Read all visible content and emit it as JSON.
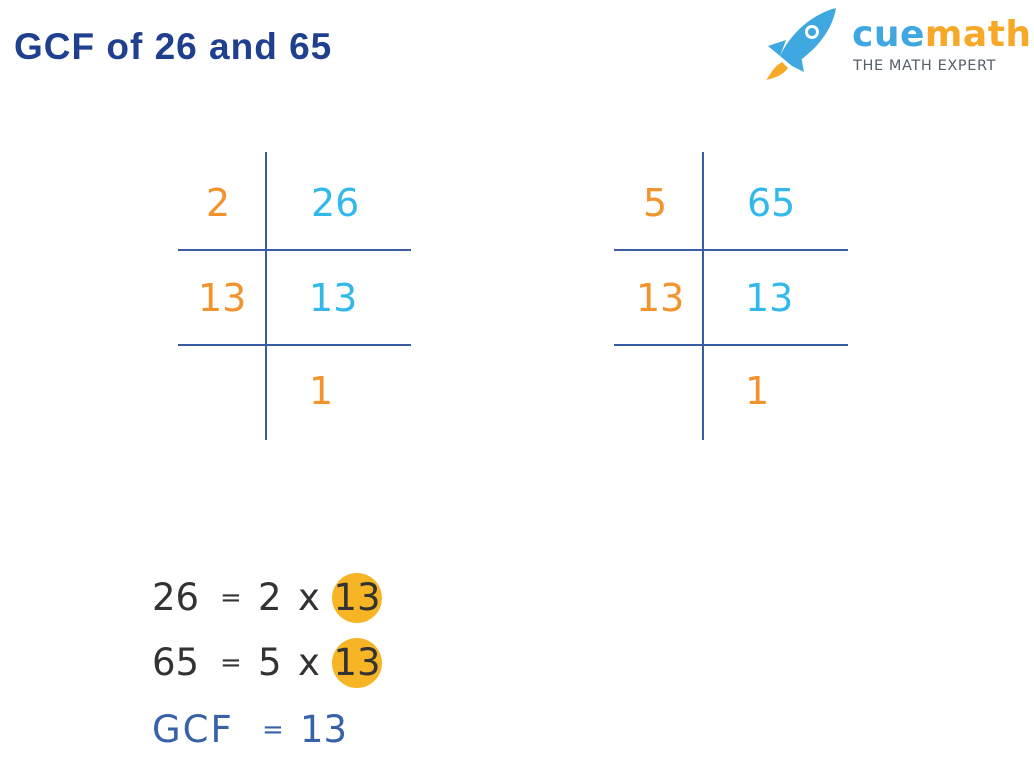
{
  "title": "GCF of 26 and 65",
  "logo": {
    "brand_cue": "cue",
    "brand_math": "math",
    "tagline": "THE MATH EXPERT"
  },
  "colors": {
    "title": "#1f3f8f",
    "divisor": "#f2932b",
    "quotient": "#33b8ec",
    "lines": "#3b5ba5",
    "highlight": "#f7b425",
    "gcf": "#3862a8"
  },
  "division_tables": [
    {
      "rows": [
        {
          "divisor": "2",
          "value": "26"
        },
        {
          "divisor": "13",
          "value": "13"
        },
        {
          "divisor": "",
          "value": "1"
        }
      ]
    },
    {
      "rows": [
        {
          "divisor": "5",
          "value": "65"
        },
        {
          "divisor": "13",
          "value": "13"
        },
        {
          "divisor": "",
          "value": "1"
        }
      ]
    }
  ],
  "factorizations": [
    {
      "number": "26",
      "equals": "=",
      "prime": "2",
      "times": "x",
      "common": "13"
    },
    {
      "number": "65",
      "equals": "=",
      "prime": "5",
      "times": "x",
      "common": "13"
    }
  ],
  "result": {
    "label": "GCF",
    "equals": "=",
    "value": "13"
  }
}
